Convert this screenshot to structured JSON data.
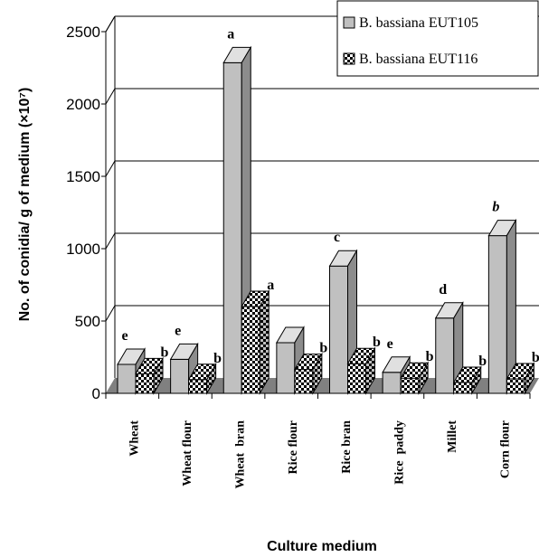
{
  "chart_data": {
    "type": "bar",
    "categories": [
      "Wheat",
      "Wheat flour",
      "Wheat  bran",
      "Rice flour",
      "Rice bran",
      "Rice  paddy",
      "Millet",
      "Corn flour"
    ],
    "series": [
      {
        "name": "B. bassiana EUT105",
        "values": [
          200,
          235,
          2285,
          350,
          880,
          145,
          520,
          1090
        ],
        "labels": [
          "e",
          "e",
          "a",
          "",
          "c",
          "e",
          "d",
          "b"
        ],
        "color": "#c0c0c0"
      },
      {
        "name": "B. bassiana EUT116",
        "values": [
          135,
          95,
          600,
          165,
          205,
          105,
          75,
          100
        ],
        "labels": [
          "b",
          "b",
          "a",
          "b",
          "b",
          "b",
          "b",
          "b"
        ],
        "color": "checker"
      }
    ],
    "ylabel": "No. of conidia/ g of medium (×10⁷)",
    "xlabel": "Culture medium",
    "ylim": [
      0,
      2500
    ],
    "yticks": [
      0,
      500,
      1000,
      1500,
      2000,
      2500
    ],
    "grid": true,
    "legend": "top-right"
  }
}
